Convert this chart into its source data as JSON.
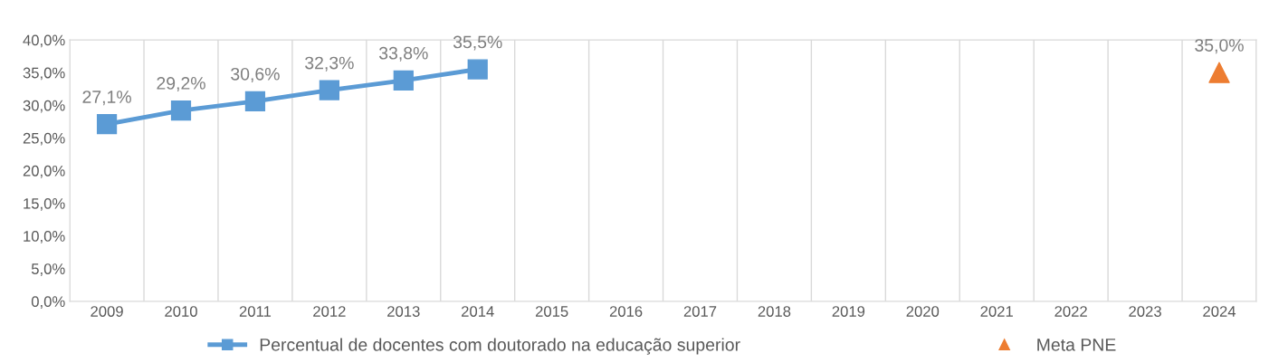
{
  "chart_data": {
    "type": "line",
    "categories": [
      "2009",
      "2010",
      "2011",
      "2012",
      "2013",
      "2014",
      "2015",
      "2016",
      "2017",
      "2018",
      "2019",
      "2020",
      "2021",
      "2022",
      "2023",
      "2024"
    ],
    "series": [
      {
        "name": "Percentual de docentes com doutorado na educação superior",
        "color": "#5b9bd5",
        "marker": "square",
        "values": [
          27.1,
          29.2,
          30.6,
          32.3,
          33.8,
          35.5,
          null,
          null,
          null,
          null,
          null,
          null,
          null,
          null,
          null,
          null
        ],
        "value_labels": [
          "27,1%",
          "29,2%",
          "30,6%",
          "32,3%",
          "33,8%",
          "35,5%",
          null,
          null,
          null,
          null,
          null,
          null,
          null,
          null,
          null,
          null
        ]
      },
      {
        "name": "Meta PNE",
        "type": "scatter",
        "color": "#ed7d31",
        "marker": "triangle",
        "values": [
          null,
          null,
          null,
          null,
          null,
          null,
          null,
          null,
          null,
          null,
          null,
          null,
          null,
          null,
          null,
          35.0
        ],
        "value_labels": [
          null,
          null,
          null,
          null,
          null,
          null,
          null,
          null,
          null,
          null,
          null,
          null,
          null,
          null,
          null,
          "35,0%"
        ]
      }
    ],
    "ylim": [
      0,
      40
    ],
    "yticks": [
      {
        "value": 0,
        "label": "0,0%"
      },
      {
        "value": 5,
        "label": "5,0%"
      },
      {
        "value": 10,
        "label": "10,0%"
      },
      {
        "value": 15,
        "label": "15,0%"
      },
      {
        "value": 20,
        "label": "20,0%"
      },
      {
        "value": 25,
        "label": "25,0%"
      },
      {
        "value": 30,
        "label": "30,0%"
      },
      {
        "value": 35,
        "label": "35,0%"
      },
      {
        "value": 40,
        "label": "40,0%"
      }
    ],
    "grid": "x",
    "legend": "bottom"
  }
}
